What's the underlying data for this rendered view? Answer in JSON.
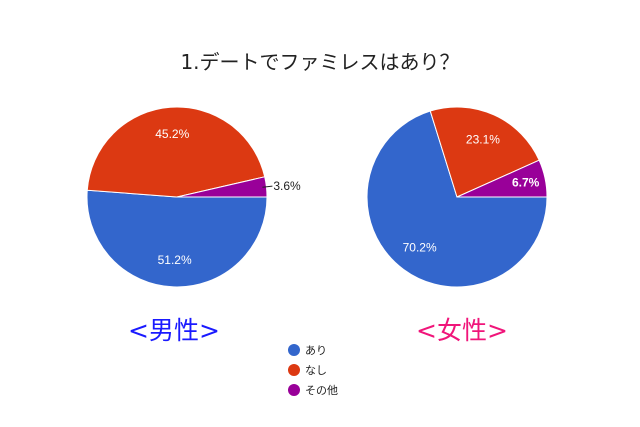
{
  "title": "1.デートでファミレスはあり？",
  "colors": {
    "ari": "#3366cc",
    "nashi": "#dc3912",
    "sonota": "#990099"
  },
  "legend": [
    {
      "label": "あり",
      "color": "#3366cc"
    },
    {
      "label": "なし",
      "color": "#dc3912"
    },
    {
      "label": "その他",
      "color": "#990099"
    }
  ],
  "groups": {
    "male": {
      "label": "<男性>",
      "color": "#1a1aff"
    },
    "female": {
      "label": "<女性>",
      "color": "#f0157a"
    }
  },
  "chart_data": [
    {
      "type": "pie",
      "title": "1.デートでファミレスはあり？",
      "subtitle": "<男性>",
      "categories": [
        "あり",
        "なし",
        "その他"
      ],
      "values": [
        51.2,
        45.2,
        3.6
      ],
      "labels": [
        "51.2%",
        "45.2%",
        "3.6%"
      ],
      "colors": [
        "#3366cc",
        "#dc3912",
        "#990099"
      ],
      "legend_position": "bottom-center"
    },
    {
      "type": "pie",
      "title": "1.デートでファミレスはあり？",
      "subtitle": "<女性>",
      "categories": [
        "あり",
        "なし",
        "その他"
      ],
      "values": [
        70.2,
        23.1,
        6.7
      ],
      "labels": [
        "70.2%",
        "23.1%",
        "6.7%"
      ],
      "colors": [
        "#3366cc",
        "#dc3912",
        "#990099"
      ],
      "legend_position": "bottom-center"
    }
  ]
}
